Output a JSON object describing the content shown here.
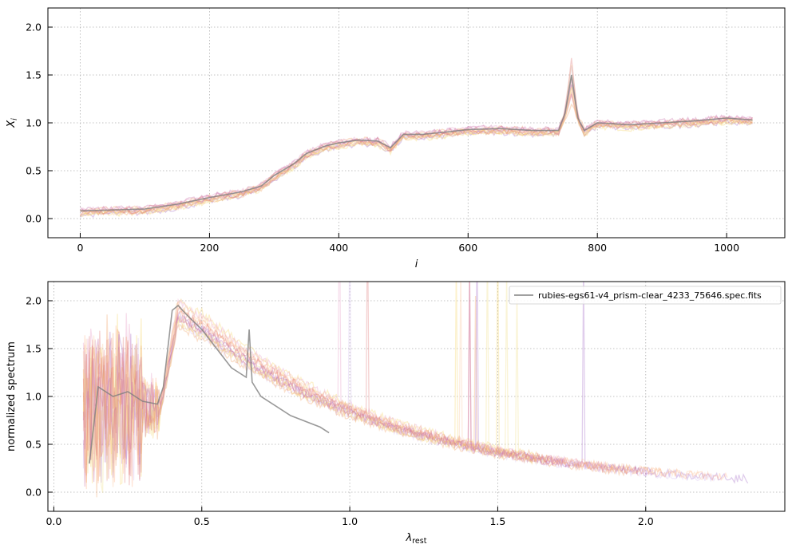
{
  "chart_data": [
    {
      "type": "line",
      "title": "",
      "xlabel": "i",
      "ylabel": "X_i",
      "xlim": [
        -50,
        1090
      ],
      "ylim": [
        -0.2,
        2.2
      ],
      "xticks": [
        0,
        200,
        400,
        600,
        800,
        1000
      ],
      "xtick_labels": [
        "0",
        "200",
        "400",
        "600",
        "800",
        "1000"
      ],
      "yticks": [
        0.0,
        0.5,
        1.0,
        1.5,
        2.0
      ],
      "ytick_labels": [
        "0.0",
        "0.5",
        "1.0",
        "1.5",
        "2.0"
      ],
      "grid": true,
      "series": [
        {
          "color": "#808080",
          "x": [
            0,
            50,
            100,
            150,
            200,
            250,
            280,
            300,
            330,
            350,
            380,
            400,
            430,
            460,
            480,
            500,
            530,
            560,
            600,
            650,
            700,
            740,
            750,
            760,
            770,
            780,
            800,
            850,
            900,
            950,
            1000,
            1040
          ],
          "y": [
            0.08,
            0.09,
            0.1,
            0.15,
            0.22,
            0.28,
            0.34,
            0.45,
            0.57,
            0.68,
            0.76,
            0.79,
            0.82,
            0.81,
            0.74,
            0.88,
            0.88,
            0.9,
            0.93,
            0.94,
            0.92,
            0.92,
            1.1,
            1.5,
            1.05,
            0.92,
            1.0,
            0.98,
            1.0,
            1.02,
            1.05,
            1.03
          ]
        }
      ]
    },
    {
      "type": "line",
      "title": "",
      "xlabel": "λ_rest",
      "ylabel": "normalized spectrum",
      "xlim": [
        -0.02,
        2.47
      ],
      "ylim": [
        -0.2,
        2.2
      ],
      "xticks": [
        0.0,
        0.5,
        1.0,
        1.5,
        2.0
      ],
      "xtick_labels": [
        "0.0",
        "0.5",
        "1.0",
        "1.5",
        "2.0"
      ],
      "yticks": [
        0.0,
        0.5,
        1.0,
        1.5,
        2.0
      ],
      "ytick_labels": [
        "0.0",
        "0.5",
        "1.0",
        "1.5",
        "2.0"
      ],
      "grid": true,
      "legend_position": "top-right",
      "series": [
        {
          "name": "rubies-egs61-v4_prism-clear_4233_75646.spec.fits",
          "color": "#808080",
          "x": [
            0.12,
            0.15,
            0.2,
            0.25,
            0.3,
            0.35,
            0.37,
            0.4,
            0.42,
            0.45,
            0.5,
            0.55,
            0.6,
            0.65,
            0.66,
            0.67,
            0.7,
            0.8,
            0.9,
            0.93
          ],
          "y": [
            0.3,
            1.1,
            1.0,
            1.05,
            0.95,
            0.92,
            1.1,
            1.9,
            1.95,
            1.85,
            1.7,
            1.5,
            1.3,
            1.2,
            1.7,
            1.15,
            1.0,
            0.8,
            0.68,
            0.62
          ]
        }
      ]
    }
  ]
}
